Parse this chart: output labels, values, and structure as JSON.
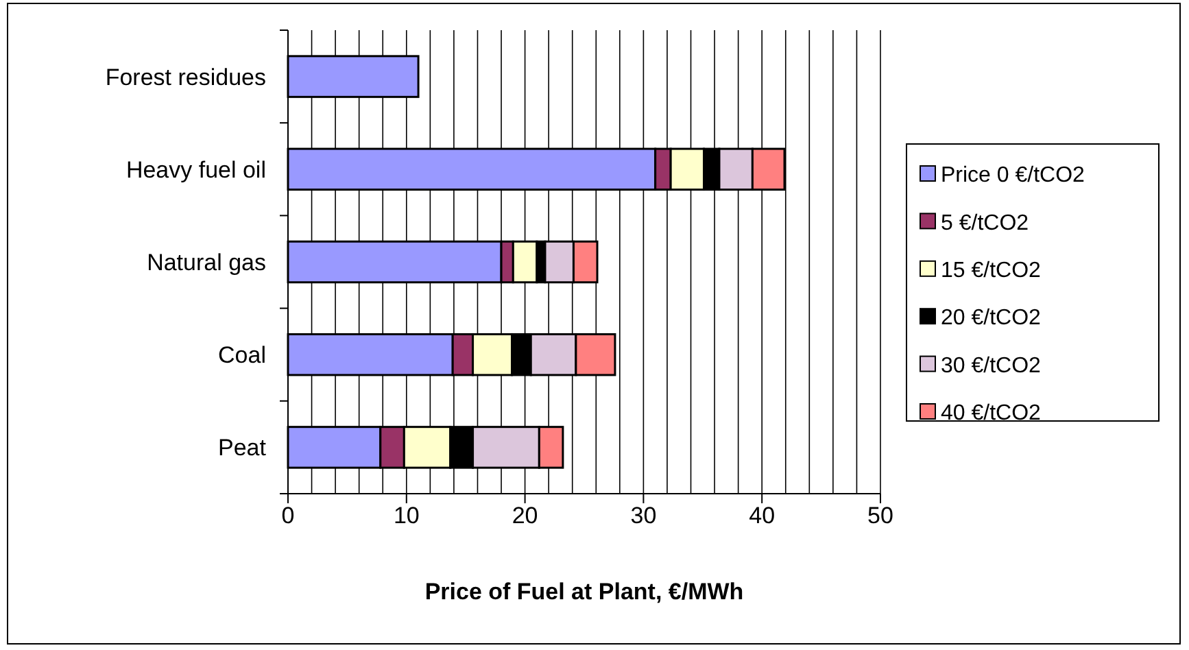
{
  "chart_data": {
    "type": "bar",
    "orientation": "horizontal",
    "stacked": true,
    "xlabel": "Price of Fuel at Plant, €/MWh",
    "categories": [
      "Forest residues",
      "Heavy fuel oil",
      "Natural gas",
      "Coal",
      "Peat"
    ],
    "series": [
      {
        "name": "Price 0 €/tCO2",
        "color": "#9999ff",
        "values": [
          11,
          31,
          18,
          13.9,
          7.8
        ]
      },
      {
        "name": "5 €/tCO2",
        "color": "#993366",
        "values": [
          null,
          1.3,
          1,
          1.7,
          2
        ]
      },
      {
        "name": "15 €/tCO2",
        "color": "#ffffcc",
        "values": [
          null,
          2.8,
          2,
          3.3,
          3.9
        ]
      },
      {
        "name": "20 €/tCO2",
        "color": "#000000",
        "values": [
          null,
          1.3,
          0.7,
          1.6,
          1.9
        ]
      },
      {
        "name": "30 €/tCO2",
        "color": "#dcc6dc",
        "values": [
          null,
          2.8,
          2.4,
          3.8,
          5.6
        ]
      },
      {
        "name": "40 €/tCO2",
        "color": "#ff8080",
        "values": [
          null,
          2.7,
          2,
          3.3,
          2
        ]
      }
    ],
    "xlim": [
      0,
      50
    ],
    "xticks": [
      0,
      {
        "value": 2,
        "label": null
      },
      {
        "value": 4,
        "label": null
      },
      {
        "value": 6,
        "label": null
      },
      {
        "value": 8,
        "label": null
      },
      10,
      {
        "value": 12,
        "label": null
      },
      {
        "value": 14,
        "label": null
      },
      {
        "value": 16,
        "label": null
      },
      {
        "value": 18,
        "label": null
      },
      20,
      {
        "value": 22,
        "label": null
      },
      {
        "value": 24,
        "label": null
      },
      {
        "value": 26,
        "label": null
      },
      {
        "value": 28,
        "label": null
      },
      30,
      {
        "value": 32,
        "label": null
      },
      {
        "value": 34,
        "label": null
      },
      {
        "value": 36,
        "label": null
      },
      {
        "value": 38,
        "label": null
      },
      40,
      {
        "value": 42,
        "label": null
      },
      {
        "value": 44,
        "label": null
      },
      {
        "value": 46,
        "label": null
      },
      {
        "value": 48,
        "label": null
      },
      50
    ],
    "grid": "x",
    "legend": "right"
  }
}
